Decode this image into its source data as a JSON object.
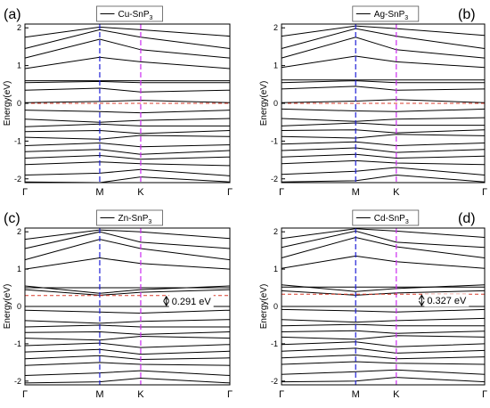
{
  "chart_data": [
    {
      "type": "line",
      "panel_label": "(a)",
      "legend": "Cu-SnP",
      "legend_sub": "3",
      "ylabel": "Energy(eV)",
      "ylim": [
        -2.1,
        2.1
      ],
      "yticks": [
        -2,
        -1,
        0,
        1,
        2
      ],
      "xticks": [
        "Γ",
        "M",
        "K",
        "Γ"
      ],
      "x": [
        0,
        1,
        2,
        3
      ],
      "fermi": 0,
      "gap_label": null,
      "colors": {
        "bands": "#000000",
        "m_line": "#1f1fd6",
        "k_line": "#cc2cf0",
        "fermi": "#d93b2b",
        "gap_marker": "#000000"
      },
      "series": [
        {
          "values": [
            -2.08,
            -2.1,
            -1.95,
            -2.08
          ]
        },
        {
          "values": [
            -1.9,
            -1.85,
            -1.75,
            -1.92
          ]
        },
        {
          "values": [
            -1.62,
            -1.55,
            -1.6,
            -1.65
          ]
        },
        {
          "values": [
            -1.45,
            -1.38,
            -1.48,
            -1.42
          ]
        },
        {
          "values": [
            -1.28,
            -1.22,
            -1.35,
            -1.25
          ]
        },
        {
          "values": [
            -1.12,
            -1.05,
            -1.15,
            -1.1
          ]
        },
        {
          "values": [
            -0.9,
            -0.95,
            -0.85,
            -0.88
          ]
        },
        {
          "values": [
            -0.75,
            -0.72,
            -0.8,
            -0.72
          ]
        },
        {
          "values": [
            -0.62,
            -0.55,
            -0.6,
            -0.6
          ]
        },
        {
          "values": [
            -0.42,
            -0.5,
            -0.45,
            -0.4
          ]
        },
        {
          "values": [
            -0.18,
            -0.22,
            -0.25,
            -0.18
          ]
        },
        {
          "values": [
            0.02,
            0.05,
            0.08,
            0.02
          ]
        },
        {
          "values": [
            0.35,
            0.4,
            0.3,
            0.35
          ]
        },
        {
          "values": [
            0.55,
            0.58,
            0.55,
            0.55
          ]
        },
        {
          "values": [
            0.6,
            0.6,
            0.6,
            0.6
          ]
        },
        {
          "values": [
            0.92,
            1.22,
            1.1,
            0.92
          ]
        },
        {
          "values": [
            1.2,
            1.7,
            1.42,
            1.2
          ]
        },
        {
          "values": [
            1.45,
            1.95,
            1.75,
            1.45
          ]
        },
        {
          "values": [
            1.75,
            2.02,
            1.95,
            1.78
          ]
        }
      ]
    },
    {
      "type": "line",
      "panel_label": "(b)",
      "legend": "Ag-SnP",
      "legend_sub": "3",
      "ylabel": "Energy(eV)",
      "ylim": [
        -2.1,
        2.1
      ],
      "yticks": [
        -2,
        -1,
        0,
        1,
        2
      ],
      "xticks": [
        "Γ",
        "M",
        "K",
        "Γ"
      ],
      "x": [
        0,
        1,
        2,
        3
      ],
      "fermi": 0,
      "gap_label": null,
      "colors": {
        "bands": "#000000",
        "m_line": "#1f1fd6",
        "k_line": "#cc2cf0",
        "fermi": "#d93b2b",
        "gap_marker": "#000000"
      },
      "series": [
        {
          "values": [
            -2.08,
            -2.05,
            -1.9,
            -2.08
          ]
        },
        {
          "values": [
            -1.88,
            -1.8,
            -1.7,
            -1.9
          ]
        },
        {
          "values": [
            -1.6,
            -1.52,
            -1.58,
            -1.62
          ]
        },
        {
          "values": [
            -1.42,
            -1.35,
            -1.45,
            -1.4
          ]
        },
        {
          "values": [
            -1.25,
            -1.18,
            -1.3,
            -1.22
          ]
        },
        {
          "values": [
            -1.08,
            -1.02,
            -1.12,
            -1.05
          ]
        },
        {
          "values": [
            -0.88,
            -0.92,
            -0.82,
            -0.86
          ]
        },
        {
          "values": [
            -0.72,
            -0.7,
            -0.78,
            -0.7
          ]
        },
        {
          "values": [
            -0.6,
            -0.52,
            -0.58,
            -0.58
          ]
        },
        {
          "values": [
            -0.4,
            -0.48,
            -0.42,
            -0.38
          ]
        },
        {
          "values": [
            -0.15,
            -0.2,
            -0.22,
            -0.15
          ]
        },
        {
          "values": [
            0.02,
            0.06,
            0.1,
            0.02
          ]
        },
        {
          "values": [
            0.38,
            0.45,
            0.35,
            0.38
          ]
        },
        {
          "values": [
            0.55,
            0.6,
            0.55,
            0.55
          ]
        },
        {
          "values": [
            0.62,
            0.62,
            0.62,
            0.62
          ]
        },
        {
          "values": [
            0.95,
            1.25,
            1.1,
            0.95
          ]
        },
        {
          "values": [
            1.2,
            1.75,
            1.42,
            1.2
          ]
        },
        {
          "values": [
            1.45,
            1.98,
            1.78,
            1.45
          ]
        },
        {
          "values": [
            1.78,
            2.05,
            1.98,
            1.8
          ]
        }
      ]
    },
    {
      "type": "line",
      "panel_label": "(c)",
      "legend": "Zn-SnP",
      "legend_sub": "3",
      "ylabel": "Energy(eV)",
      "ylim": [
        -2.1,
        2.1
      ],
      "yticks": [
        -2,
        -1,
        0,
        1,
        2
      ],
      "xticks": [
        "Γ",
        "M",
        "K",
        "Γ"
      ],
      "x": [
        0,
        1,
        2,
        3
      ],
      "fermi": 0.291,
      "gap_label": "0.291 eV",
      "colors": {
        "bands": "#000000",
        "m_line": "#1f1fd6",
        "k_line": "#cc2cf0",
        "fermi": "#d93b2b",
        "gap_marker": "#000000"
      },
      "series": [
        {
          "values": [
            -2.05,
            -2.02,
            -1.92,
            -2.05
          ]
        },
        {
          "values": [
            -1.85,
            -1.78,
            -1.72,
            -1.85
          ]
        },
        {
          "values": [
            -1.58,
            -1.5,
            -1.55,
            -1.58
          ]
        },
        {
          "values": [
            -1.4,
            -1.32,
            -1.42,
            -1.38
          ]
        },
        {
          "values": [
            -1.22,
            -1.15,
            -1.28,
            -1.2
          ]
        },
        {
          "values": [
            -1.05,
            -0.98,
            -1.1,
            -1.02
          ]
        },
        {
          "values": [
            -0.85,
            -0.9,
            -0.8,
            -0.85
          ]
        },
        {
          "values": [
            -0.7,
            -0.68,
            -0.75,
            -0.68
          ]
        },
        {
          "values": [
            -0.55,
            -0.5,
            -0.55,
            -0.55
          ]
        },
        {
          "values": [
            -0.38,
            -0.45,
            -0.4,
            -0.35
          ]
        },
        {
          "values": [
            -0.1,
            -0.15,
            -0.18,
            -0.1
          ]
        },
        {
          "values": [
            0.0,
            0.0,
            0.0,
            0.0
          ]
        },
        {
          "values": [
            0.45,
            0.3,
            0.38,
            0.45
          ]
        },
        {
          "values": [
            0.5,
            0.5,
            0.5,
            0.5
          ]
        },
        {
          "values": [
            0.55,
            0.35,
            0.45,
            0.55
          ]
        },
        {
          "values": [
            1.0,
            1.3,
            1.15,
            1.0
          ]
        },
        {
          "values": [
            1.25,
            1.8,
            1.55,
            1.25
          ]
        },
        {
          "values": [
            1.55,
            2.0,
            1.72,
            1.55
          ]
        },
        {
          "values": [
            1.8,
            2.05,
            2.0,
            1.82
          ]
        }
      ]
    },
    {
      "type": "line",
      "panel_label": "(d)",
      "legend": "Cd-SnP",
      "legend_sub": "3",
      "ylabel": "Energy(eV)",
      "ylim": [
        -2.1,
        2.1
      ],
      "yticks": [
        -2,
        -1,
        0,
        1,
        2
      ],
      "xticks": [
        "Γ",
        "M",
        "K",
        "Γ"
      ],
      "x": [
        0,
        1,
        2,
        3
      ],
      "fermi": 0.327,
      "gap_label": "0.327 eV",
      "colors": {
        "bands": "#000000",
        "m_line": "#1f1fd6",
        "k_line": "#cc2cf0",
        "fermi": "#d93b2b",
        "gap_marker": "#000000"
      },
      "series": [
        {
          "values": [
            -2.02,
            -2.0,
            -1.9,
            -2.02
          ]
        },
        {
          "values": [
            -1.82,
            -1.75,
            -1.7,
            -1.82
          ]
        },
        {
          "values": [
            -1.55,
            -1.48,
            -1.52,
            -1.55
          ]
        },
        {
          "values": [
            -1.38,
            -1.3,
            -1.4,
            -1.35
          ]
        },
        {
          "values": [
            -1.2,
            -1.12,
            -1.25,
            -1.18
          ]
        },
        {
          "values": [
            -1.02,
            -0.95,
            -1.08,
            -1.0
          ]
        },
        {
          "values": [
            -0.82,
            -0.88,
            -0.78,
            -0.82
          ]
        },
        {
          "values": [
            -0.68,
            -0.65,
            -0.72,
            -0.66
          ]
        },
        {
          "values": [
            -0.52,
            -0.48,
            -0.52,
            -0.52
          ]
        },
        {
          "values": [
            -0.35,
            -0.42,
            -0.38,
            -0.32
          ]
        },
        {
          "values": [
            -0.08,
            -0.12,
            -0.15,
            -0.08
          ]
        },
        {
          "values": [
            0.0,
            0.0,
            0.0,
            0.0
          ]
        },
        {
          "values": [
            0.42,
            0.3,
            0.36,
            0.42
          ]
        },
        {
          "values": [
            0.52,
            0.52,
            0.52,
            0.52
          ]
        },
        {
          "values": [
            0.58,
            0.4,
            0.48,
            0.58
          ]
        },
        {
          "values": [
            1.02,
            1.35,
            1.2,
            1.02
          ]
        },
        {
          "values": [
            1.3,
            1.85,
            1.6,
            1.3
          ]
        },
        {
          "values": [
            1.58,
            2.02,
            1.72,
            1.58
          ]
        },
        {
          "values": [
            1.82,
            2.08,
            2.02,
            1.85
          ]
        }
      ]
    }
  ]
}
